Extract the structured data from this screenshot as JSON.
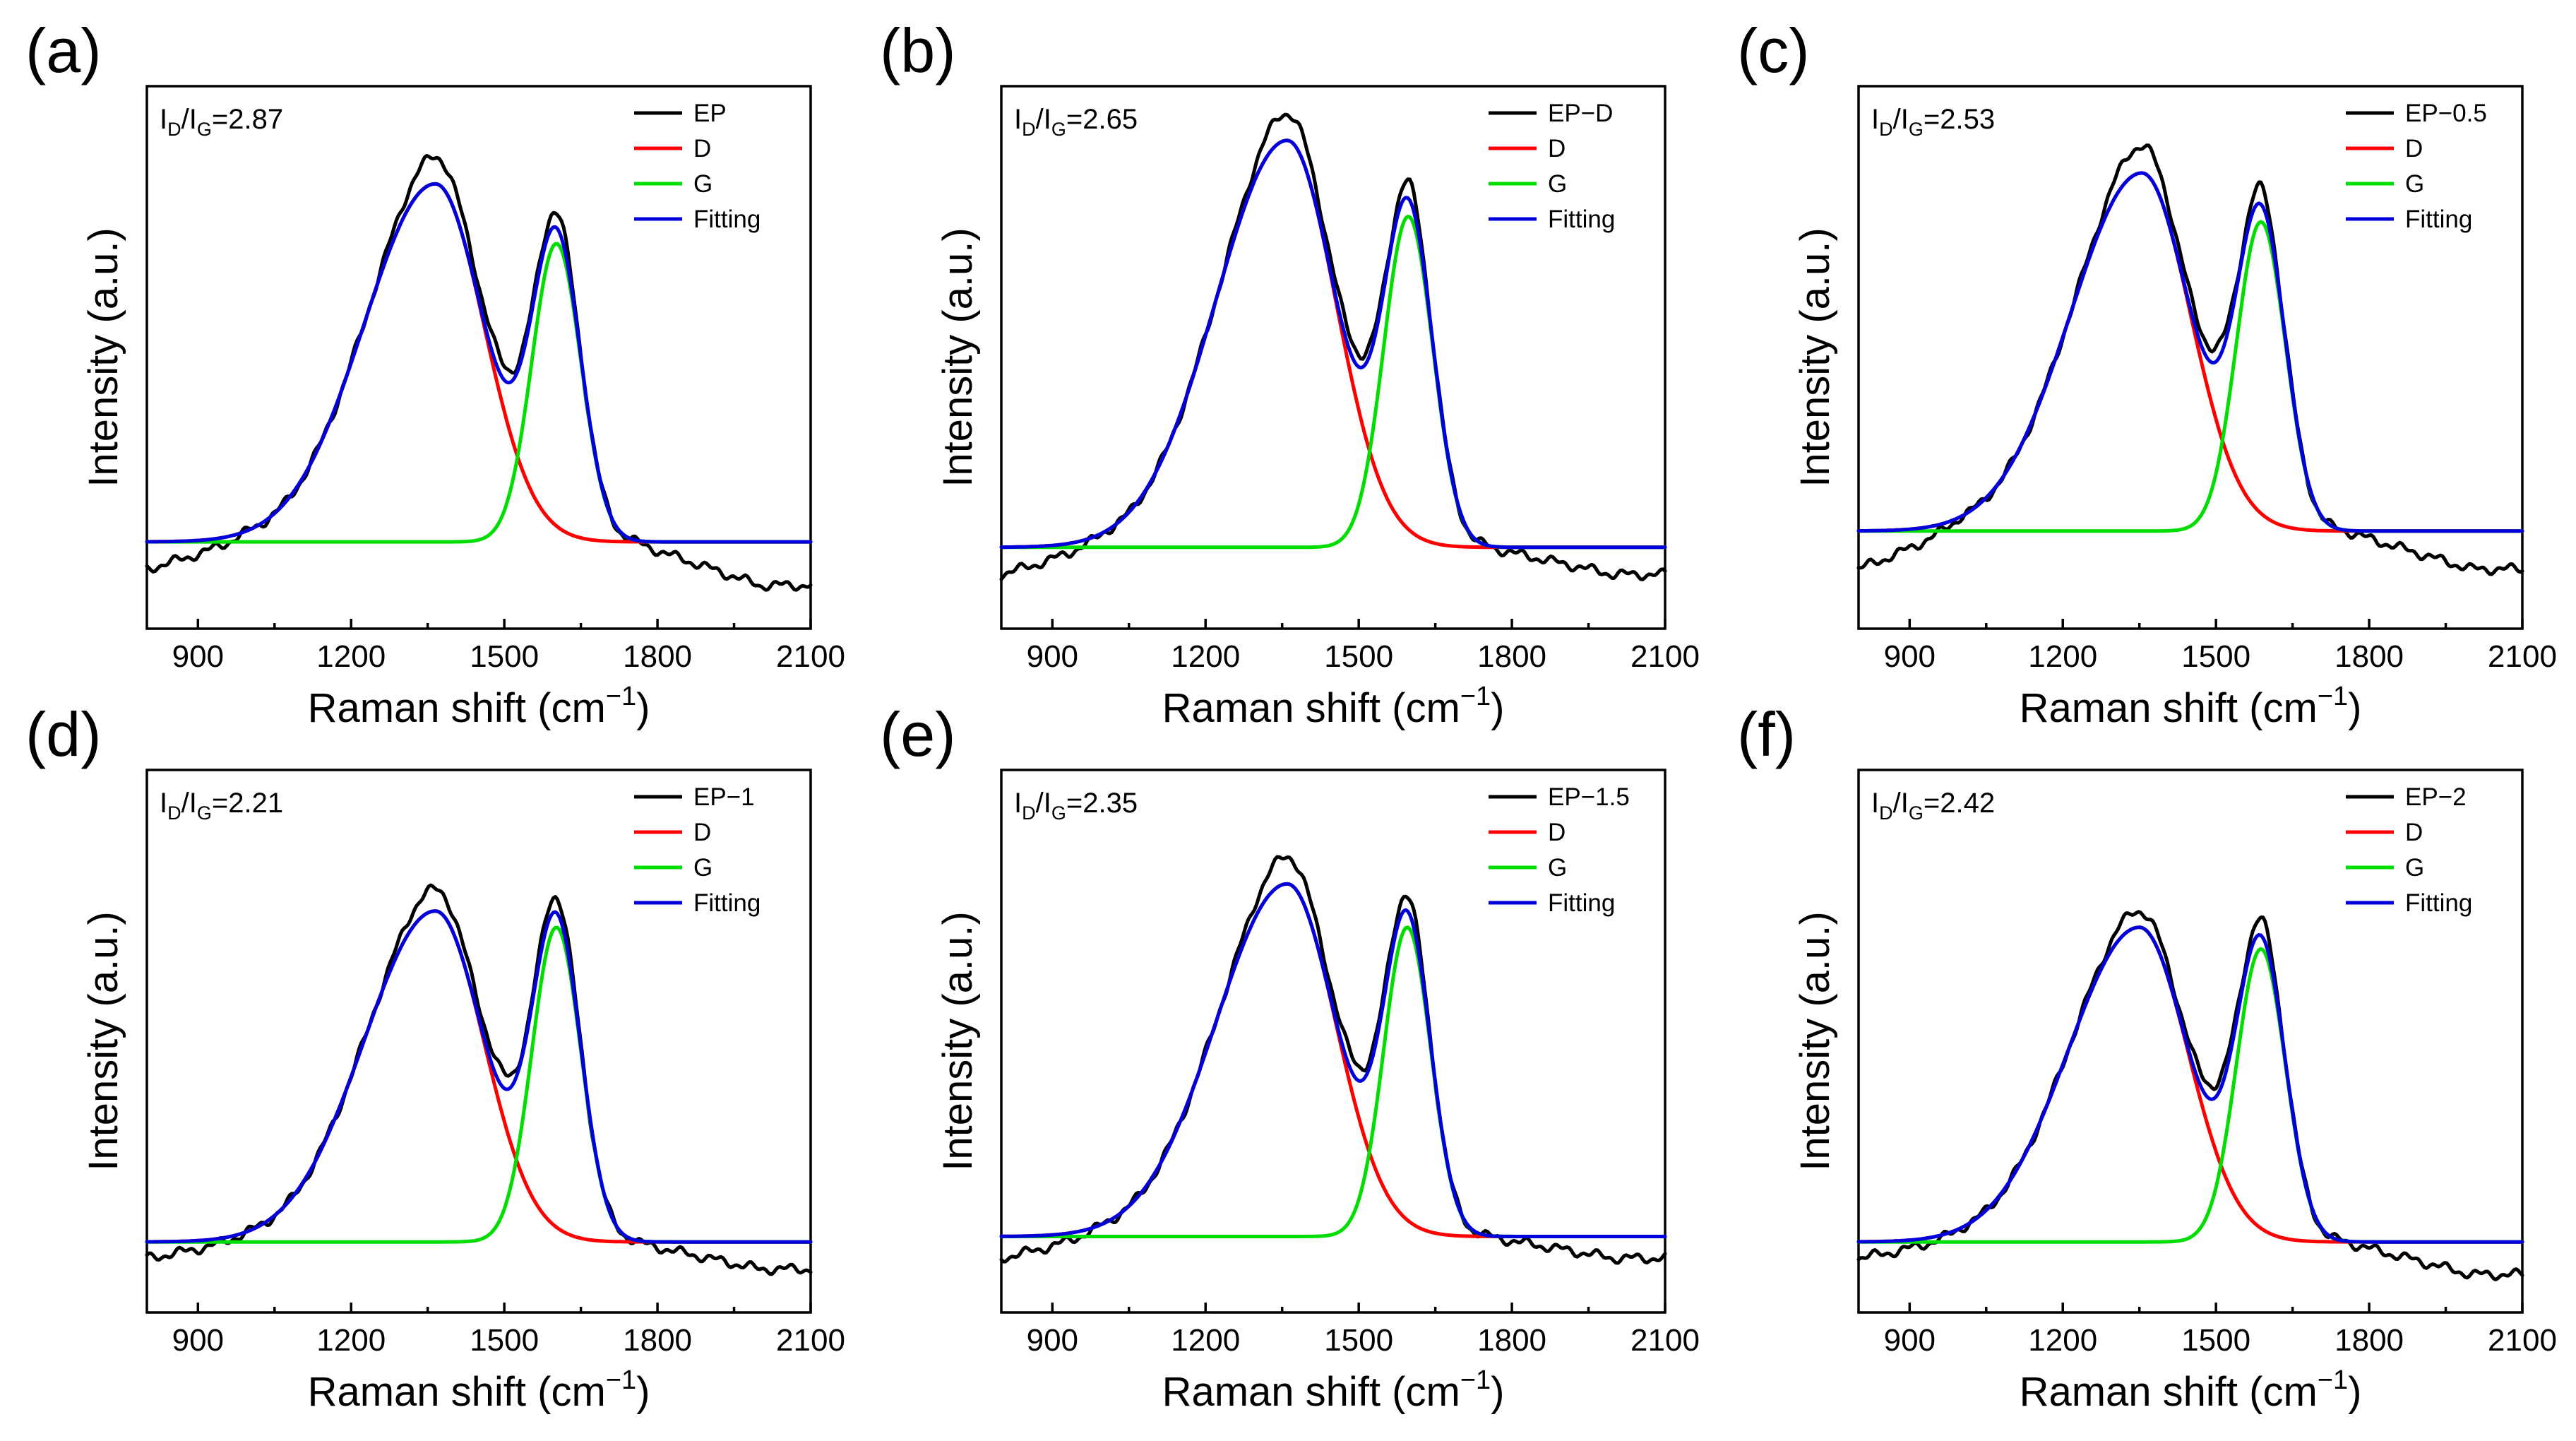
{
  "chart_data": [
    {
      "type": "line",
      "panel_label": "(a)",
      "ratio_label": {
        "prefix": "I",
        "sub1": "D",
        "mid": "/I",
        "sub2": "G",
        "value": "=2.87"
      },
      "xlabel": {
        "text": "Raman shift (cm",
        "sup": "−1",
        "close": ")"
      },
      "ylabel": "Intensity (a.u.)",
      "xlim": [
        800,
        2100
      ],
      "xticks": [
        900,
        1200,
        1500,
        1800,
        2100
      ],
      "ylim": [
        0,
        1
      ],
      "grid": false,
      "legend_position": "top-right",
      "baseline": 0.16,
      "baseline_left": 0.11,
      "baseline_right": 0.08,
      "d_band": {
        "center": 1365,
        "height": 0.66,
        "sigma_left": 140,
        "sigma_right": 95
      },
      "g_band": {
        "center": 1602,
        "height": 0.55,
        "sigma": 48
      },
      "obs_excess": {
        "d": 0.05,
        "g": 0.03
      },
      "series": [
        {
          "name": "EP",
          "color": "#000000",
          "role": "observed"
        },
        {
          "name": "D",
          "color": "#ff0000",
          "role": "d"
        },
        {
          "name": "G",
          "color": "#00dd00",
          "role": "g"
        },
        {
          "name": "Fitting",
          "color": "#0000dd",
          "role": "fit"
        }
      ]
    },
    {
      "type": "line",
      "panel_label": "(b)",
      "ratio_label": {
        "prefix": "I",
        "sub1": "D",
        "mid": "/I",
        "sub2": "G",
        "value": "=2.65"
      },
      "xlabel": {
        "text": "Raman shift (cm",
        "sup": "−1",
        "close": ")"
      },
      "ylabel": "Intensity (a.u.)",
      "xlim": [
        800,
        2100
      ],
      "xticks": [
        900,
        1200,
        1500,
        1800,
        2100
      ],
      "ylim": [
        0,
        1
      ],
      "grid": false,
      "legend_position": "top-right",
      "baseline": 0.15,
      "baseline_left": 0.1,
      "baseline_right": 0.1,
      "d_band": {
        "center": 1360,
        "height": 0.75,
        "sigma_left": 140,
        "sigma_right": 95
      },
      "g_band": {
        "center": 1597,
        "height": 0.61,
        "sigma": 48
      },
      "obs_excess": {
        "d": 0.05,
        "g": 0.03
      },
      "series": [
        {
          "name": "EP−D",
          "color": "#000000",
          "role": "observed"
        },
        {
          "name": "D",
          "color": "#ff0000",
          "role": "d"
        },
        {
          "name": "G",
          "color": "#00dd00",
          "role": "g"
        },
        {
          "name": "Fitting",
          "color": "#0000dd",
          "role": "fit"
        }
      ]
    },
    {
      "type": "line",
      "panel_label": "(c)",
      "ratio_label": {
        "prefix": "I",
        "sub1": "D",
        "mid": "/I",
        "sub2": "G",
        "value": "=2.53"
      },
      "xlabel": {
        "text": "Raman shift (cm",
        "sup": "−1",
        "close": ")"
      },
      "ylabel": "Intensity (a.u.)",
      "xlim": [
        800,
        2100
      ],
      "xticks": [
        900,
        1200,
        1500,
        1800,
        2100
      ],
      "ylim": [
        0,
        1
      ],
      "grid": false,
      "legend_position": "top-right",
      "baseline": 0.18,
      "baseline_left": 0.11,
      "baseline_right": 0.11,
      "d_band": {
        "center": 1355,
        "height": 0.66,
        "sigma_left": 140,
        "sigma_right": 95
      },
      "g_band": {
        "center": 1588,
        "height": 0.57,
        "sigma": 48
      },
      "obs_excess": {
        "d": 0.05,
        "g": 0.03
      },
      "series": [
        {
          "name": "EP−0.5",
          "color": "#000000",
          "role": "observed"
        },
        {
          "name": "D",
          "color": "#ff0000",
          "role": "d"
        },
        {
          "name": "G",
          "color": "#00dd00",
          "role": "g"
        },
        {
          "name": "Fitting",
          "color": "#0000dd",
          "role": "fit"
        }
      ]
    },
    {
      "type": "line",
      "panel_label": "(d)",
      "ratio_label": {
        "prefix": "I",
        "sub1": "D",
        "mid": "/I",
        "sub2": "G",
        "value": "=2.21"
      },
      "xlabel": {
        "text": "Raman shift (cm",
        "sup": "−1",
        "close": ")"
      },
      "ylabel": "Intensity (a.u.)",
      "xlim": [
        800,
        2100
      ],
      "xticks": [
        900,
        1200,
        1500,
        1800,
        2100
      ],
      "ylim": [
        0,
        1
      ],
      "grid": false,
      "legend_position": "top-right",
      "baseline": 0.13,
      "baseline_left": 0.1,
      "baseline_right": 0.08,
      "d_band": {
        "center": 1365,
        "height": 0.61,
        "sigma_left": 140,
        "sigma_right": 95
      },
      "g_band": {
        "center": 1602,
        "height": 0.58,
        "sigma": 48
      },
      "obs_excess": {
        "d": 0.04,
        "g": 0.03
      },
      "series": [
        {
          "name": "EP−1",
          "color": "#000000",
          "role": "observed"
        },
        {
          "name": "D",
          "color": "#ff0000",
          "role": "d"
        },
        {
          "name": "G",
          "color": "#00dd00",
          "role": "g"
        },
        {
          "name": "Fitting",
          "color": "#0000dd",
          "role": "fit"
        }
      ]
    },
    {
      "type": "line",
      "panel_label": "(e)",
      "ratio_label": {
        "prefix": "I",
        "sub1": "D",
        "mid": "/I",
        "sub2": "G",
        "value": "=2.35"
      },
      "xlabel": {
        "text": "Raman shift (cm",
        "sup": "−1",
        "close": ")"
      },
      "ylabel": "Intensity (a.u.)",
      "xlim": [
        800,
        2100
      ],
      "xticks": [
        900,
        1200,
        1500,
        1800,
        2100
      ],
      "ylim": [
        0,
        1
      ],
      "grid": false,
      "legend_position": "top-right",
      "baseline": 0.14,
      "baseline_left": 0.1,
      "baseline_right": 0.1,
      "d_band": {
        "center": 1360,
        "height": 0.65,
        "sigma_left": 140,
        "sigma_right": 95
      },
      "g_band": {
        "center": 1595,
        "height": 0.57,
        "sigma": 46
      },
      "obs_excess": {
        "d": 0.05,
        "g": 0.03
      },
      "series": [
        {
          "name": "EP−1.5",
          "color": "#000000",
          "role": "observed"
        },
        {
          "name": "D",
          "color": "#ff0000",
          "role": "d"
        },
        {
          "name": "G",
          "color": "#00dd00",
          "role": "g"
        },
        {
          "name": "Fitting",
          "color": "#0000dd",
          "role": "fit"
        }
      ]
    },
    {
      "type": "line",
      "panel_label": "(f)",
      "ratio_label": {
        "prefix": "I",
        "sub1": "D",
        "mid": "/I",
        "sub2": "G",
        "value": "=2.42"
      },
      "xlabel": {
        "text": "Raman shift (cm",
        "sup": "−1",
        "close": ")"
      },
      "ylabel": "Intensity (a.u.)",
      "xlim": [
        800,
        2100
      ],
      "xticks": [
        900,
        1200,
        1500,
        1800,
        2100
      ],
      "ylim": [
        0,
        1
      ],
      "grid": false,
      "legend_position": "top-right",
      "baseline": 0.13,
      "baseline_left": 0.1,
      "baseline_right": 0.07,
      "d_band": {
        "center": 1350,
        "height": 0.58,
        "sigma_left": 140,
        "sigma_right": 95
      },
      "g_band": {
        "center": 1588,
        "height": 0.54,
        "sigma": 48
      },
      "obs_excess": {
        "d": 0.03,
        "g": 0.03
      },
      "series": [
        {
          "name": "EP−2",
          "color": "#000000",
          "role": "observed"
        },
        {
          "name": "D",
          "color": "#ff0000",
          "role": "d"
        },
        {
          "name": "G",
          "color": "#00dd00",
          "role": "g"
        },
        {
          "name": "Fitting",
          "color": "#0000dd",
          "role": "fit"
        }
      ]
    }
  ]
}
